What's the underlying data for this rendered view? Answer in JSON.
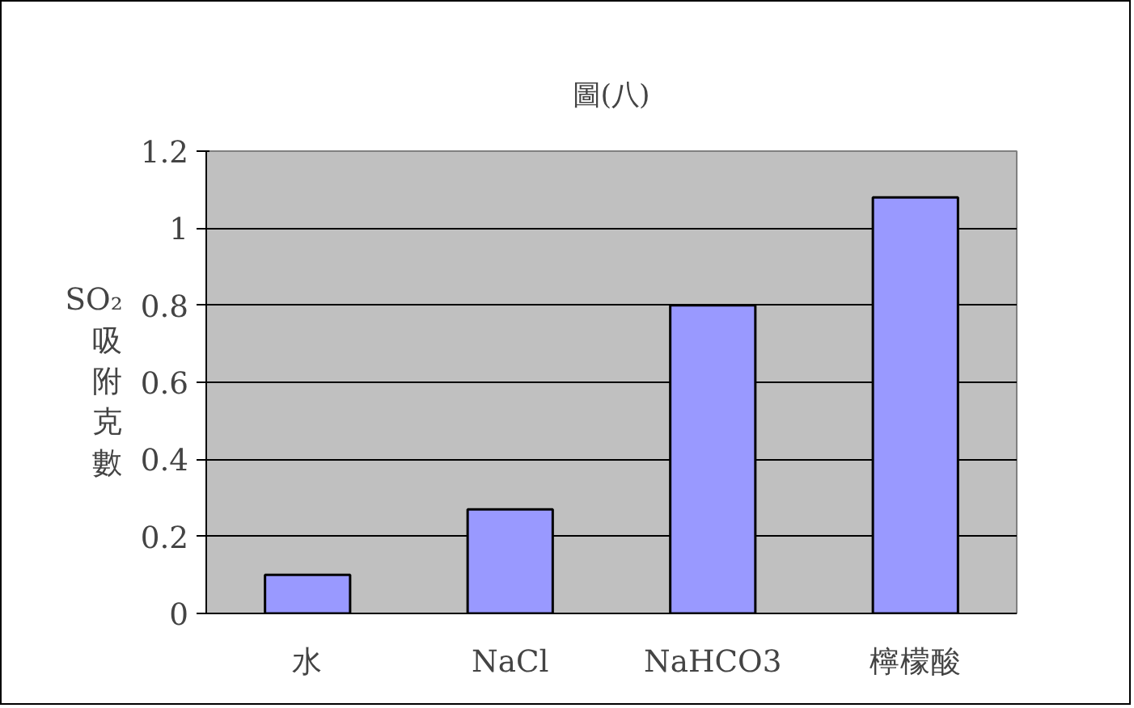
{
  "chart_data": {
    "type": "bar",
    "title": "圖(八)",
    "ylabel": "SO₂吸附克數",
    "categories": [
      "水",
      "NaCl",
      "NaHCO3",
      "檸檬酸"
    ],
    "values": [
      0.1,
      0.27,
      0.8,
      1.08
    ],
    "color": "#9999ff",
    "ylim": [
      0,
      1.2
    ],
    "yticks": [
      0,
      0.2,
      0.4,
      0.6,
      0.8,
      1,
      1.2
    ],
    "grid": "y"
  }
}
